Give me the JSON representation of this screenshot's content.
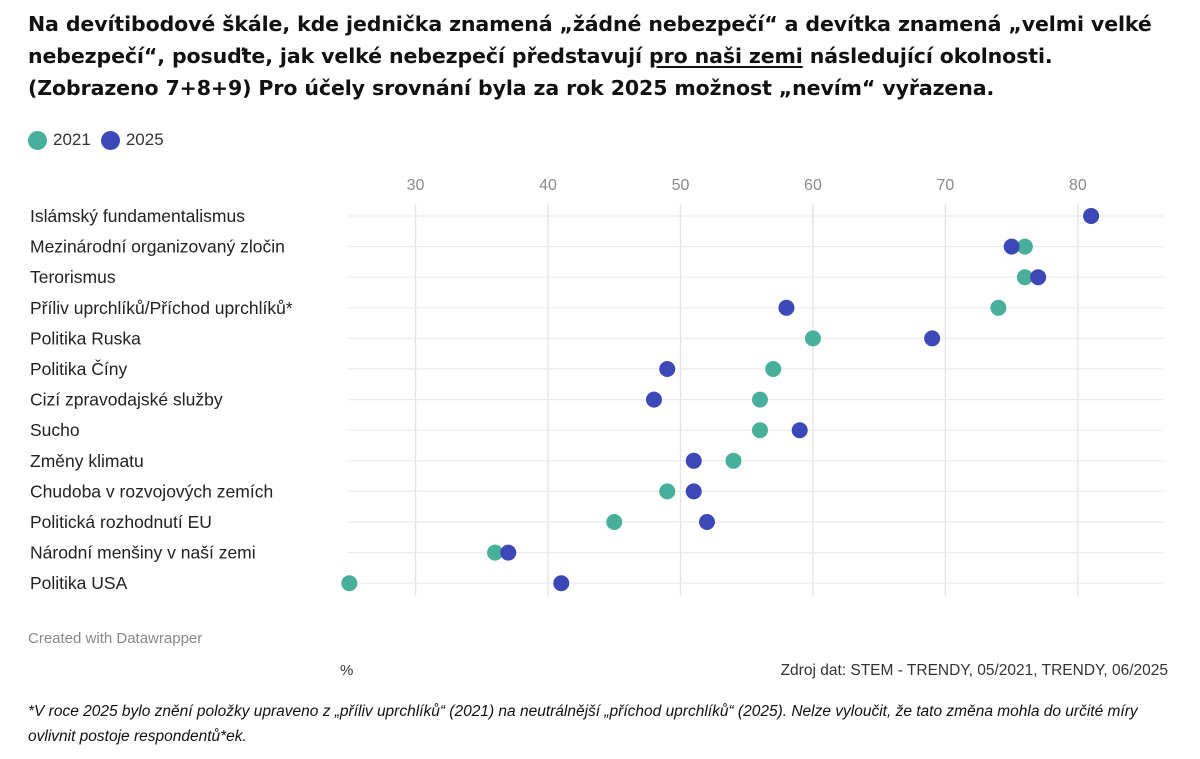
{
  "title": {
    "part1": "Na devítibodové škále, kde jednička znamená „žádné nebezpečí“ a devítka znamená „velmi velké nebezpečí“, posuďte, jak velké nebezpečí představují ",
    "underlined": "pro naši zemi",
    "part2": " následující okolnosti. (Zobrazeno 7+8+9) Pro účely srovnání byla za rok 2025 možnost „nevím“ vyřazena."
  },
  "legend": [
    {
      "label": "2021",
      "color": "#48b09a"
    },
    {
      "label": "2025",
      "color": "#3d48b8"
    }
  ],
  "chart_data": {
    "type": "scatter",
    "categories": [
      "Islámský fundamentalismus",
      "Mezinárodní organizovaný zločin",
      "Terorismus",
      "Příliv uprchlíků/Příchod uprchlíků*",
      "Politika Ruska",
      "Politika Číny",
      "Cizí zpravodajské služby",
      "Sucho",
      "Změny klimatu",
      "Chudoba v rozvojových zemích",
      "Politická rozhodnutí EU",
      "Národní menšiny v naší zemi",
      "Politika USA"
    ],
    "series": [
      {
        "name": "2021",
        "color": "#48b09a",
        "values": [
          81,
          76,
          76,
          74,
          60,
          57,
          56,
          56,
          54,
          49,
          45,
          36,
          25
        ]
      },
      {
        "name": "2025",
        "color": "#3d48b8",
        "values": [
          81,
          75,
          77,
          58,
          69,
          49,
          48,
          59,
          51,
          51,
          52,
          37,
          41
        ]
      }
    ],
    "x_ticks": [
      30,
      40,
      50,
      60,
      70,
      80
    ],
    "xlim": [
      24.9,
      86.2
    ],
    "grid": true,
    "legend_position": "top-left",
    "xlabel": "%"
  },
  "credit": "Created with Datawrapper",
  "unit_label": "%",
  "source": "Zdroj dat: STEM - TRENDY, 05/2021, TRENDY, 06/2025",
  "footnote": "*V roce 2025 bylo znění položky upraveno z „příliv uprchlíků“ (2021) na neutrálnější „příchod uprchlíků“ (2025). Nelze vyloučit, že tato změna mohla do určité míry ovlivnit postoje respondentů*ek."
}
